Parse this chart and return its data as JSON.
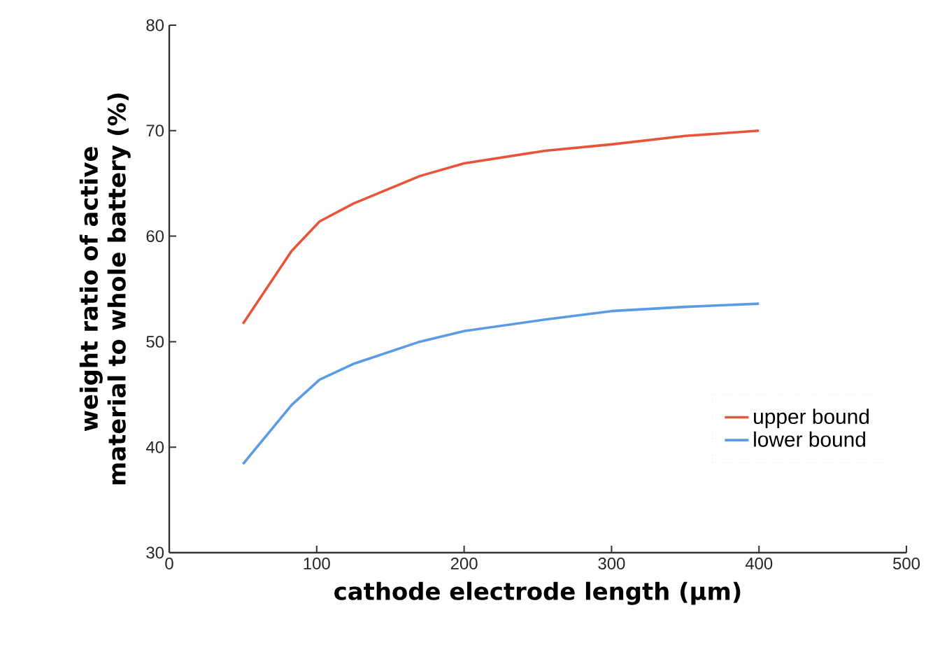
{
  "chart_data": {
    "type": "line",
    "xlabel": "cathode electrode length (μm)",
    "ylabel": "weight ratio of active material to whole battery (%)",
    "xlim": [
      0,
      500
    ],
    "ylim": [
      30,
      80
    ],
    "xticks": [
      0,
      100,
      200,
      300,
      400,
      500
    ],
    "yticks": [
      30,
      40,
      50,
      60,
      70,
      80
    ],
    "legend": "bottom right",
    "grid": false,
    "marker": "none",
    "line_style": "solid",
    "series": [
      {
        "name": "upper bound",
        "color": "#e8543a",
        "x": [
          50,
          83,
          102,
          125,
          170,
          200,
          255,
          300,
          350,
          400
        ],
        "values": [
          51.7,
          58.6,
          61.4,
          63.1,
          65.7,
          66.9,
          68.1,
          68.7,
          69.5,
          70.0
        ]
      },
      {
        "name": "lower bound",
        "color": "#5b9be6",
        "x": [
          50,
          83,
          102,
          125,
          170,
          200,
          255,
          300,
          350,
          400
        ],
        "values": [
          38.4,
          44.0,
          46.4,
          47.9,
          50.0,
          51.0,
          52.1,
          52.9,
          53.3,
          53.6
        ]
      }
    ]
  }
}
